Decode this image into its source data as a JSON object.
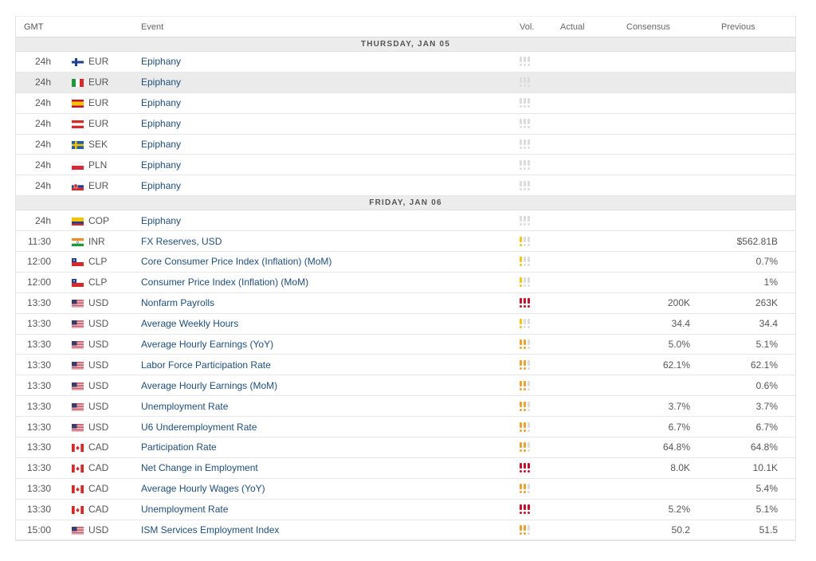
{
  "header": {
    "time": "GMT",
    "event": "Event",
    "vol": "Vol.",
    "actual": "Actual",
    "consensus": "Consensus",
    "previous": "Previous"
  },
  "colors": {
    "vol_low": "#f0c419",
    "vol_medium": "#f0a030",
    "vol_high": "#c8102e",
    "vol_empty": "#dcdcdc"
  },
  "sections": [
    {
      "date": "THURSDAY, JAN 05",
      "rows": [
        {
          "time": "24h",
          "flag": "finland-flag",
          "currency": "EUR",
          "event": "Epiphany",
          "volatility": 0,
          "actual": "",
          "consensus": "",
          "previous": ""
        },
        {
          "time": "24h",
          "flag": "italy-flag",
          "currency": "EUR",
          "event": "Epiphany",
          "volatility": 0,
          "actual": "",
          "consensus": "",
          "previous": "",
          "highlighted": true
        },
        {
          "time": "24h",
          "flag": "spain-flag",
          "currency": "EUR",
          "event": "Epiphany",
          "volatility": 0,
          "actual": "",
          "consensus": "",
          "previous": ""
        },
        {
          "time": "24h",
          "flag": "austria-flag",
          "currency": "EUR",
          "event": "Epiphany",
          "volatility": 0,
          "actual": "",
          "consensus": "",
          "previous": ""
        },
        {
          "time": "24h",
          "flag": "sweden-flag",
          "currency": "SEK",
          "event": "Epiphany",
          "volatility": 0,
          "actual": "",
          "consensus": "",
          "previous": ""
        },
        {
          "time": "24h",
          "flag": "poland-flag",
          "currency": "PLN",
          "event": "Epiphany",
          "volatility": 0,
          "actual": "",
          "consensus": "",
          "previous": ""
        },
        {
          "time": "24h",
          "flag": "slovakia-flag",
          "currency": "EUR",
          "event": "Epiphany",
          "volatility": 0,
          "actual": "",
          "consensus": "",
          "previous": ""
        }
      ]
    },
    {
      "date": "FRIDAY, JAN 06",
      "rows": [
        {
          "time": "24h",
          "flag": "colombia-flag",
          "currency": "COP",
          "event": "Epiphany",
          "volatility": 0,
          "actual": "",
          "consensus": "",
          "previous": ""
        },
        {
          "time": "11:30",
          "flag": "india-flag",
          "currency": "INR",
          "event": "FX Reserves, USD",
          "volatility": 1,
          "actual": "",
          "consensus": "",
          "previous": "$562.81B"
        },
        {
          "time": "12:00",
          "flag": "chile-flag",
          "currency": "CLP",
          "event": "Core Consumer Price Index (Inflation) (MoM)",
          "volatility": 1,
          "actual": "",
          "consensus": "",
          "previous": "0.7%"
        },
        {
          "time": "12:00",
          "flag": "chile-flag",
          "currency": "CLP",
          "event": "Consumer Price Index (Inflation) (MoM)",
          "volatility": 1,
          "actual": "",
          "consensus": "",
          "previous": "1%"
        },
        {
          "time": "13:30",
          "flag": "usa-flag",
          "currency": "USD",
          "event": "Nonfarm Payrolls",
          "volatility": 3,
          "actual": "",
          "consensus": "200K",
          "previous": "263K"
        },
        {
          "time": "13:30",
          "flag": "usa-flag",
          "currency": "USD",
          "event": "Average Weekly Hours",
          "volatility": 1,
          "actual": "",
          "consensus": "34.4",
          "previous": "34.4"
        },
        {
          "time": "13:30",
          "flag": "usa-flag",
          "currency": "USD",
          "event": "Average Hourly Earnings (YoY)",
          "volatility": 2,
          "actual": "",
          "consensus": "5.0%",
          "previous": "5.1%"
        },
        {
          "time": "13:30",
          "flag": "usa-flag",
          "currency": "USD",
          "event": "Labor Force Participation Rate",
          "volatility": 2,
          "actual": "",
          "consensus": "62.1%",
          "previous": "62.1%"
        },
        {
          "time": "13:30",
          "flag": "usa-flag",
          "currency": "USD",
          "event": "Average Hourly Earnings (MoM)",
          "volatility": 2,
          "actual": "",
          "consensus": "",
          "previous": "0.6%"
        },
        {
          "time": "13:30",
          "flag": "usa-flag",
          "currency": "USD",
          "event": "Unemployment Rate",
          "volatility": 2,
          "actual": "",
          "consensus": "3.7%",
          "previous": "3.7%"
        },
        {
          "time": "13:30",
          "flag": "usa-flag",
          "currency": "USD",
          "event": "U6 Underemployment Rate",
          "volatility": 2,
          "actual": "",
          "consensus": "6.7%",
          "previous": "6.7%"
        },
        {
          "time": "13:30",
          "flag": "canada-flag",
          "currency": "CAD",
          "event": "Participation Rate",
          "volatility": 2,
          "actual": "",
          "consensus": "64.8%",
          "previous": "64.8%"
        },
        {
          "time": "13:30",
          "flag": "canada-flag",
          "currency": "CAD",
          "event": "Net Change in Employment",
          "volatility": 3,
          "actual": "",
          "consensus": "8.0K",
          "previous": "10.1K"
        },
        {
          "time": "13:30",
          "flag": "canada-flag",
          "currency": "CAD",
          "event": "Average Hourly Wages (YoY)",
          "volatility": 2,
          "actual": "",
          "consensus": "",
          "previous": "5.4%"
        },
        {
          "time": "13:30",
          "flag": "canada-flag",
          "currency": "CAD",
          "event": "Unemployment Rate",
          "volatility": 3,
          "actual": "",
          "consensus": "5.2%",
          "previous": "5.1%"
        },
        {
          "time": "15:00",
          "flag": "usa-flag",
          "currency": "USD",
          "event": "ISM Services Employment Index",
          "volatility": 2,
          "actual": "",
          "consensus": "50.2",
          "previous": "51.5"
        }
      ]
    }
  ]
}
